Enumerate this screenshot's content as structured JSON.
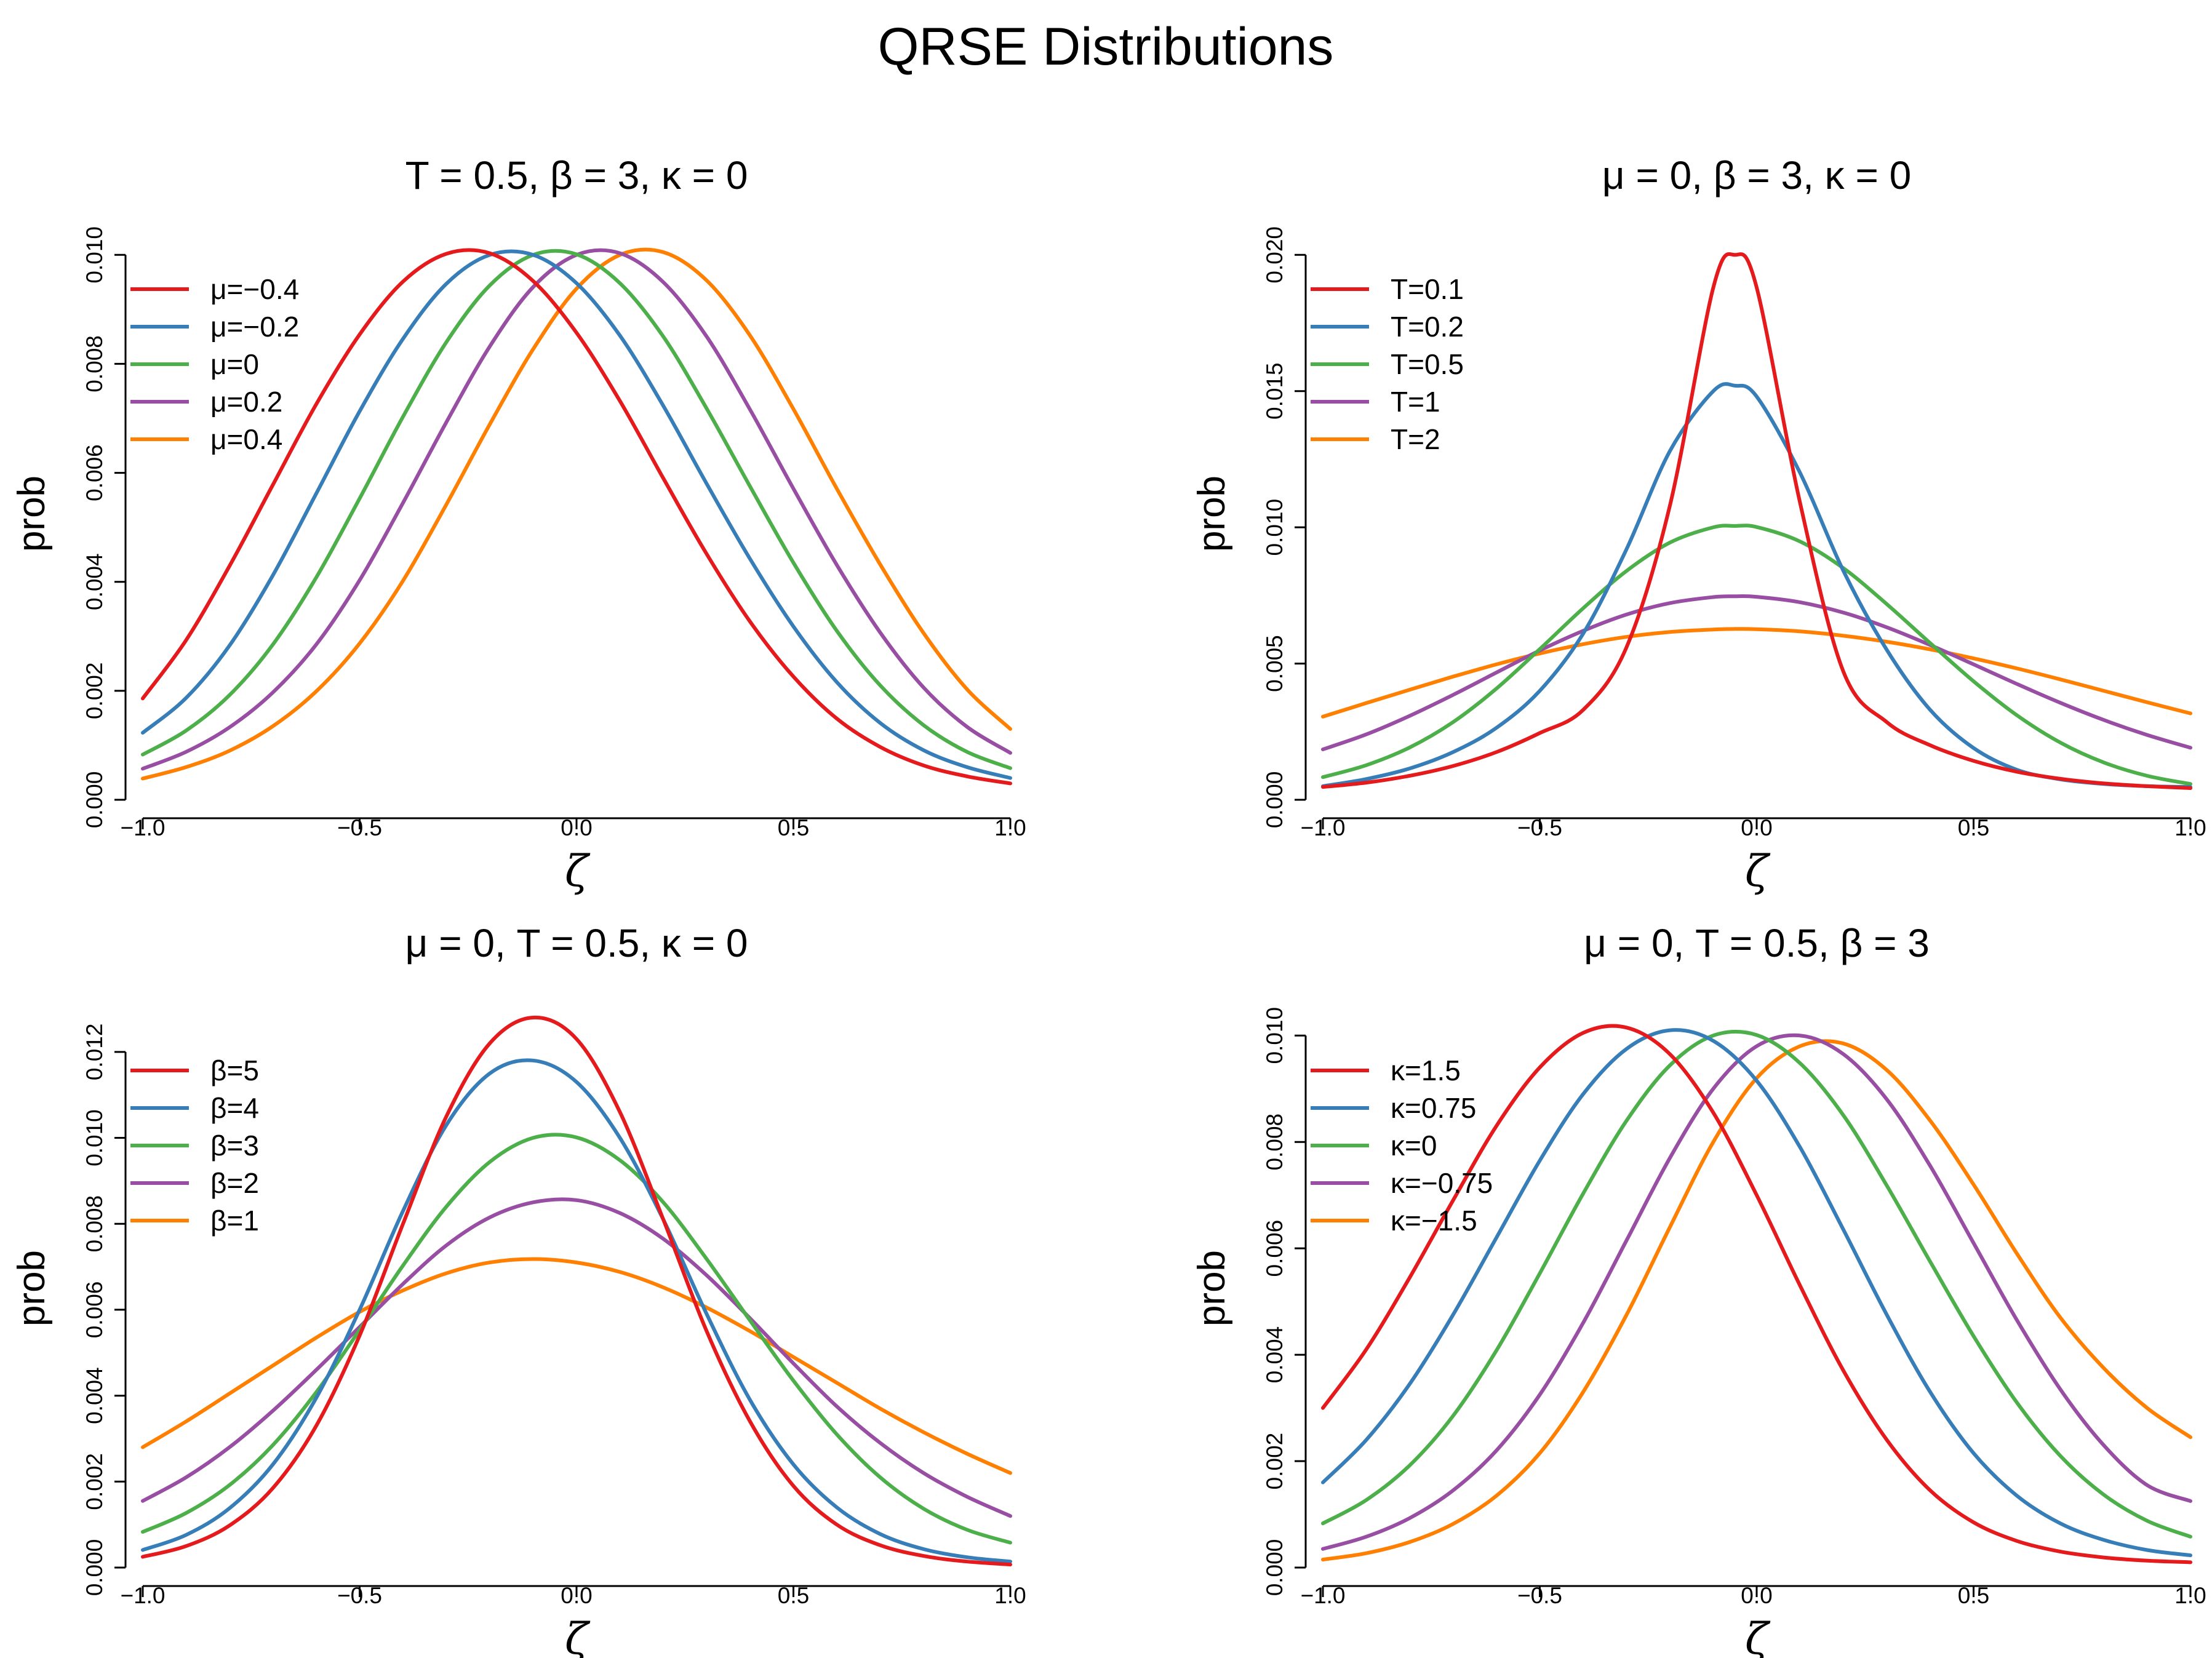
{
  "figure": {
    "title": "QRSE Distributions"
  },
  "colors": {
    "red": "#E41A1C",
    "blue": "#377EB8",
    "green": "#4DAF4A",
    "purple": "#984EA3",
    "orange": "#FF7F00"
  },
  "chart_data": [
    {
      "type": "line",
      "title": "T = 0.5, β = 3, κ = 0",
      "xlabel": "ζ",
      "ylabel": "prob",
      "xlim": [
        -1.0,
        1.0
      ],
      "ylim": [
        0.0,
        0.0105
      ],
      "xticks": [
        "−1.0",
        "−0.5",
        "0.0",
        "0.5",
        "1.0"
      ],
      "xtick_values": [
        -1.0,
        -0.5,
        0.0,
        0.5,
        1.0
      ],
      "yticks": [
        "0.000",
        "0.002",
        "0.004",
        "0.006",
        "0.008",
        "0.010"
      ],
      "ytick_values": [
        0.0,
        0.002,
        0.004,
        0.006,
        0.008,
        0.01
      ],
      "legend_position": "top-left",
      "grid": false,
      "x": [
        -1.0,
        -0.9,
        -0.8,
        -0.7,
        -0.6,
        -0.5,
        -0.4,
        -0.3,
        -0.2,
        -0.1,
        0.0,
        0.1,
        0.2,
        0.3,
        0.4,
        0.5,
        0.6,
        0.7,
        0.8,
        0.9,
        1.0
      ],
      "series": [
        {
          "name": "μ=−0.4",
          "color": "red",
          "values": [
            0.00186,
            0.00293,
            0.00429,
            0.00578,
            0.00726,
            0.00854,
            0.00951,
            0.01002,
            0.01003,
            0.00952,
            0.00857,
            0.00732,
            0.0059,
            0.00451,
            0.00327,
            0.00226,
            0.00149,
            0.00097,
            0.00063,
            0.00043,
            0.0003
          ]
        },
        {
          "name": "μ=−0.2",
          "color": "blue",
          "values": [
            0.00123,
            0.00187,
            0.00283,
            0.00412,
            0.00562,
            0.00713,
            0.00846,
            0.00947,
            0.01,
            0.01,
            0.00948,
            0.00852,
            0.00723,
            0.0058,
            0.00442,
            0.00318,
            0.00216,
            0.00141,
            0.00091,
            0.0006,
            0.0004
          ]
        },
        {
          "name": "μ=0",
          "color": "green",
          "values": [
            0.00083,
            0.00127,
            0.00192,
            0.00285,
            0.00408,
            0.00553,
            0.00703,
            0.0084,
            0.00944,
            0.01,
            0.01001,
            0.00948,
            0.0085,
            0.00718,
            0.00575,
            0.00435,
            0.0031,
            0.0021,
            0.00137,
            0.00088,
            0.00058
          ]
        },
        {
          "name": "μ=0.2",
          "color": "purple",
          "values": [
            0.00057,
            0.00088,
            0.00133,
            0.00197,
            0.00285,
            0.00403,
            0.00545,
            0.00693,
            0.00832,
            0.00941,
            0.01,
            0.01003,
            0.0095,
            0.0085,
            0.00716,
            0.00571,
            0.00431,
            0.00307,
            0.00206,
            0.00134,
            0.00086
          ]
        },
        {
          "name": "μ=0.4",
          "color": "orange",
          "values": [
            0.00039,
            0.0006,
            0.0009,
            0.00135,
            0.00199,
            0.00287,
            0.00402,
            0.00542,
            0.00689,
            0.00827,
            0.00938,
            0.01,
            0.01005,
            0.00953,
            0.00852,
            0.00717,
            0.00571,
            0.00432,
            0.00306,
            0.00203,
            0.0013
          ]
        }
      ]
    },
    {
      "type": "line",
      "title": "μ = 0, β = 3, κ = 0",
      "xlabel": "ζ",
      "ylabel": "prob",
      "xlim": [
        -1.0,
        1.0
      ],
      "ylim": [
        0.0,
        0.021
      ],
      "xticks": [
        "−1.0",
        "−0.5",
        "0.0",
        "0.5",
        "1.0"
      ],
      "xtick_values": [
        -1.0,
        -0.5,
        0.0,
        0.5,
        1.0
      ],
      "yticks": [
        "0.000",
        "0.005",
        "0.010",
        "0.015",
        "0.020"
      ],
      "ytick_values": [
        0.0,
        0.005,
        0.01,
        0.015,
        0.02
      ],
      "legend_position": "top-left",
      "grid": false,
      "x": [
        -1.0,
        -0.9,
        -0.8,
        -0.7,
        -0.6,
        -0.5,
        -0.4,
        -0.3,
        -0.2,
        -0.1,
        -0.05,
        0.0,
        0.1,
        0.2,
        0.3,
        0.4,
        0.5,
        0.6,
        0.7,
        0.8,
        0.9,
        1.0
      ],
      "series": [
        {
          "name": "T=0.1",
          "color": "red",
          "values": [
            0.00047,
            0.00063,
            0.00088,
            0.00124,
            0.00175,
            0.00245,
            0.0033,
            0.0056,
            0.0108,
            0.0188,
            0.02,
            0.0188,
            0.0109,
            0.0047,
            0.00285,
            0.002,
            0.00143,
            0.00103,
            0.00077,
            0.0006,
            0.0005,
            0.00043
          ]
        },
        {
          "name": "T=0.2",
          "color": "blue",
          "values": [
            0.0005,
            0.00076,
            0.00115,
            0.00175,
            0.00264,
            0.004,
            0.0061,
            0.0092,
            0.0128,
            0.015,
            0.0152,
            0.0148,
            0.012,
            0.0084,
            0.0055,
            0.0033,
            0.0019,
            0.0011,
            0.00075,
            0.00058,
            0.0005,
            0.00047
          ]
        },
        {
          "name": "T=0.5",
          "color": "green",
          "values": [
            0.00083,
            0.00127,
            0.00192,
            0.00285,
            0.00408,
            0.00553,
            0.00703,
            0.0084,
            0.00944,
            0.01,
            0.01005,
            0.01001,
            0.00948,
            0.0085,
            0.00718,
            0.00575,
            0.00435,
            0.0031,
            0.0021,
            0.00137,
            0.00088,
            0.00058
          ]
        },
        {
          "name": "T=1",
          "color": "purple",
          "values": [
            0.00185,
            0.0024,
            0.00308,
            0.00385,
            0.00467,
            0.00548,
            0.0062,
            0.0068,
            0.00722,
            0.00744,
            0.00747,
            0.00745,
            0.00725,
            0.00687,
            0.00633,
            0.00568,
            0.00497,
            0.00425,
            0.00356,
            0.00293,
            0.00238,
            0.00191
          ]
        },
        {
          "name": "T=2",
          "color": "orange",
          "values": [
            0.00305,
            0.00355,
            0.00404,
            0.00452,
            0.00497,
            0.00537,
            0.00571,
            0.00598,
            0.00616,
            0.00625,
            0.00627,
            0.00626,
            0.00618,
            0.00602,
            0.0058,
            0.00552,
            0.00519,
            0.00482,
            0.00442,
            0.004,
            0.00358,
            0.00317
          ]
        }
      ]
    },
    {
      "type": "line",
      "title": "μ = 0, T = 0.5, κ = 0",
      "xlabel": "ζ",
      "ylabel": "prob",
      "xlim": [
        -1.0,
        1.0
      ],
      "ylim": [
        0.0,
        0.013
      ],
      "xticks": [
        "−1.0",
        "−0.5",
        "0.0",
        "0.5",
        "1.0"
      ],
      "xtick_values": [
        -1.0,
        -0.5,
        0.0,
        0.5,
        1.0
      ],
      "yticks": [
        "0.000",
        "0.002",
        "0.004",
        "0.006",
        "0.008",
        "0.010",
        "0.012"
      ],
      "ytick_values": [
        0.0,
        0.002,
        0.004,
        0.006,
        0.008,
        0.01,
        0.012
      ],
      "legend_position": "top-left",
      "grid": false,
      "x": [
        -1.0,
        -0.9,
        -0.8,
        -0.7,
        -0.6,
        -0.5,
        -0.4,
        -0.3,
        -0.2,
        -0.1,
        0.0,
        0.1,
        0.2,
        0.3,
        0.4,
        0.5,
        0.6,
        0.7,
        0.8,
        0.9,
        1.0
      ],
      "series": [
        {
          "name": "β=5",
          "color": "red",
          "values": [
            0.00025,
            0.0005,
            0.00098,
            0.00185,
            0.0033,
            0.0054,
            0.008,
            0.0105,
            0.0122,
            0.0128,
            0.0123,
            0.0106,
            0.0081,
            0.0055,
            0.0034,
            0.0019,
            0.001,
            0.00052,
            0.00027,
            0.00014,
            7e-05
          ]
        },
        {
          "name": "β=4",
          "color": "blue",
          "values": [
            0.00041,
            0.00076,
            0.00138,
            0.0024,
            0.00395,
            0.006,
            0.0083,
            0.0103,
            0.0115,
            0.0118,
            0.0113,
            0.01,
            0.0081,
            0.0059,
            0.0039,
            0.0024,
            0.0014,
            0.00078,
            0.00043,
            0.00024,
            0.00014
          ]
        },
        {
          "name": "β=3",
          "color": "green",
          "values": [
            0.00083,
            0.00127,
            0.00192,
            0.00285,
            0.00408,
            0.00553,
            0.00703,
            0.0084,
            0.00944,
            0.01,
            0.01001,
            0.00948,
            0.0085,
            0.00718,
            0.00575,
            0.00435,
            0.0031,
            0.0021,
            0.00137,
            0.00088,
            0.00058
          ]
        },
        {
          "name": "β=2",
          "color": "purple",
          "values": [
            0.00155,
            0.0021,
            0.0028,
            0.00365,
            0.0046,
            0.0056,
            0.0066,
            0.0075,
            0.00815,
            0.0085,
            0.00855,
            0.00825,
            0.00765,
            0.0068,
            0.0058,
            0.00475,
            0.00375,
            0.0029,
            0.0022,
            0.00165,
            0.0012
          ]
        },
        {
          "name": "β=1",
          "color": "orange",
          "values": [
            0.0028,
            0.0034,
            0.00405,
            0.0047,
            0.00535,
            0.00595,
            0.00645,
            0.00685,
            0.0071,
            0.00718,
            0.0071,
            0.00688,
            0.00652,
            0.00605,
            0.0055,
            0.0049,
            0.0043,
            0.0037,
            0.00315,
            0.00265,
            0.0022
          ]
        }
      ]
    },
    {
      "type": "line",
      "title": "μ = 0, T = 0.5, β = 3",
      "xlabel": "ζ",
      "ylabel": "prob",
      "xlim": [
        -1.0,
        1.0
      ],
      "ylim": [
        0.0,
        0.0105
      ],
      "xticks": [
        "−1.0",
        "−0.5",
        "0.0",
        "0.5",
        "1.0"
      ],
      "xtick_values": [
        -1.0,
        -0.5,
        0.0,
        0.5,
        1.0
      ],
      "yticks": [
        "0.000",
        "0.002",
        "0.004",
        "0.006",
        "0.008",
        "0.010"
      ],
      "ytick_values": [
        0.0,
        0.002,
        0.004,
        0.006,
        0.008,
        0.01
      ],
      "legend_position": "top-left",
      "grid": false,
      "x": [
        -1.0,
        -0.9,
        -0.8,
        -0.7,
        -0.6,
        -0.5,
        -0.4,
        -0.3,
        -0.2,
        -0.1,
        0.0,
        0.1,
        0.2,
        0.3,
        0.4,
        0.5,
        0.6,
        0.7,
        0.8,
        0.9,
        1.0
      ],
      "series": [
        {
          "name": "κ=1.5",
          "color": "red",
          "values": [
            0.003,
            0.0041,
            0.00545,
            0.0069,
            0.0083,
            0.0094,
            0.01005,
            0.01015,
            0.00965,
            0.00855,
            0.007,
            0.0053,
            0.0037,
            0.0024,
            0.00145,
            0.00085,
            0.0005,
            0.0003,
            0.00019,
            0.00013,
            0.0001
          ]
        },
        {
          "name": "κ=0.75",
          "color": "blue",
          "values": [
            0.0016,
            0.0024,
            0.00345,
            0.00475,
            0.0062,
            0.00765,
            0.0089,
            0.00975,
            0.0101,
            0.0099,
            0.00915,
            0.0079,
            0.00635,
            0.00475,
            0.0033,
            0.00215,
            0.00135,
            0.00083,
            0.00052,
            0.00033,
            0.00023
          ]
        },
        {
          "name": "κ=0",
          "color": "green",
          "values": [
            0.00083,
            0.00127,
            0.00192,
            0.00285,
            0.00408,
            0.00553,
            0.00703,
            0.0084,
            0.00944,
            0.01,
            0.01001,
            0.00948,
            0.0085,
            0.00718,
            0.00575,
            0.00435,
            0.0031,
            0.0021,
            0.00137,
            0.00088,
            0.00058
          ]
        },
        {
          "name": "κ=−0.75",
          "color": "purple",
          "values": [
            0.00035,
            0.00058,
            0.00093,
            0.00145,
            0.0022,
            0.00325,
            0.0046,
            0.00615,
            0.0077,
            0.009,
            0.0098,
            0.01,
            0.00965,
            0.0088,
            0.00755,
            0.0061,
            0.00465,
            0.00335,
            0.0023,
            0.00155,
            0.00125
          ]
        },
        {
          "name": "κ=−1.5",
          "color": "orange",
          "values": [
            0.00015,
            0.00027,
            0.00048,
            0.00082,
            0.00135,
            0.00215,
            0.0033,
            0.00475,
            0.0064,
            0.008,
            0.0092,
            0.0098,
            0.00985,
            0.00935,
            0.0084,
            0.0072,
            0.0059,
            0.0047,
            0.00375,
            0.003,
            0.00245
          ]
        }
      ]
    }
  ]
}
